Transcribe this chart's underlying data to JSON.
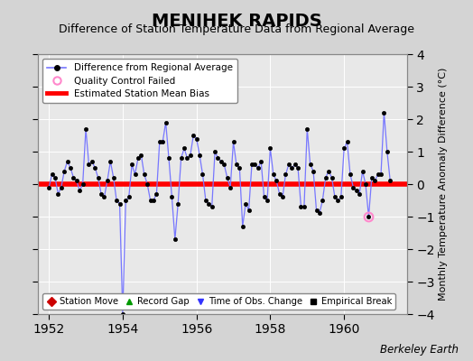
{
  "title": "MENIHEK RAPIDS",
  "subtitle": "Difference of Station Temperature Data from Regional Average",
  "ylabel": "Monthly Temperature Anomaly Difference (°C)",
  "credit": "Berkeley Earth",
  "xlim": [
    1951.7,
    1961.7
  ],
  "ylim": [
    -4,
    4
  ],
  "yticks": [
    -4,
    -3,
    -2,
    -1,
    0,
    1,
    2,
    3,
    4
  ],
  "xticks": [
    1952,
    1954,
    1956,
    1958,
    1960
  ],
  "bias_y": 0.0,
  "line_color": "#7777ff",
  "marker_color": "#000000",
  "bias_color": "#ff0000",
  "bg_color": "#e8e8e8",
  "fig_bg_color": "#d4d4d4",
  "data": [
    [
      1952.0,
      -0.1
    ],
    [
      1952.083,
      0.3
    ],
    [
      1952.167,
      0.2
    ],
    [
      1952.25,
      -0.3
    ],
    [
      1952.333,
      -0.1
    ],
    [
      1952.417,
      0.4
    ],
    [
      1952.5,
      0.7
    ],
    [
      1952.583,
      0.5
    ],
    [
      1952.667,
      0.2
    ],
    [
      1952.75,
      0.1
    ],
    [
      1952.833,
      -0.2
    ],
    [
      1952.917,
      0.0
    ],
    [
      1953.0,
      1.7
    ],
    [
      1953.083,
      0.6
    ],
    [
      1953.167,
      0.7
    ],
    [
      1953.25,
      0.5
    ],
    [
      1953.333,
      0.2
    ],
    [
      1953.417,
      -0.3
    ],
    [
      1953.5,
      -0.4
    ],
    [
      1953.583,
      0.1
    ],
    [
      1953.667,
      0.7
    ],
    [
      1953.75,
      0.2
    ],
    [
      1953.833,
      -0.5
    ],
    [
      1953.917,
      -0.6
    ],
    [
      1954.0,
      -4.0
    ],
    [
      1954.083,
      -0.5
    ],
    [
      1954.167,
      -0.4
    ],
    [
      1954.25,
      0.6
    ],
    [
      1954.333,
      0.3
    ],
    [
      1954.417,
      0.8
    ],
    [
      1954.5,
      0.9
    ],
    [
      1954.583,
      0.3
    ],
    [
      1954.667,
      0.0
    ],
    [
      1954.75,
      -0.5
    ],
    [
      1954.833,
      -0.5
    ],
    [
      1954.917,
      -0.3
    ],
    [
      1955.0,
      1.3
    ],
    [
      1955.083,
      1.3
    ],
    [
      1955.167,
      1.9
    ],
    [
      1955.25,
      0.8
    ],
    [
      1955.333,
      -0.4
    ],
    [
      1955.417,
      -1.7
    ],
    [
      1955.5,
      -0.6
    ],
    [
      1955.583,
      0.8
    ],
    [
      1955.667,
      1.1
    ],
    [
      1955.75,
      0.8
    ],
    [
      1955.833,
      0.9
    ],
    [
      1955.917,
      1.5
    ],
    [
      1956.0,
      1.4
    ],
    [
      1956.083,
      0.9
    ],
    [
      1956.167,
      0.3
    ],
    [
      1956.25,
      -0.5
    ],
    [
      1956.333,
      -0.6
    ],
    [
      1956.417,
      -0.7
    ],
    [
      1956.5,
      1.0
    ],
    [
      1956.583,
      0.8
    ],
    [
      1956.667,
      0.7
    ],
    [
      1956.75,
      0.6
    ],
    [
      1956.833,
      0.2
    ],
    [
      1956.917,
      -0.1
    ],
    [
      1957.0,
      1.3
    ],
    [
      1957.083,
      0.6
    ],
    [
      1957.167,
      0.5
    ],
    [
      1957.25,
      -1.3
    ],
    [
      1957.333,
      -0.6
    ],
    [
      1957.417,
      -0.8
    ],
    [
      1957.5,
      0.6
    ],
    [
      1957.583,
      0.6
    ],
    [
      1957.667,
      0.5
    ],
    [
      1957.75,
      0.7
    ],
    [
      1957.833,
      -0.4
    ],
    [
      1957.917,
      -0.5
    ],
    [
      1958.0,
      1.1
    ],
    [
      1958.083,
      0.3
    ],
    [
      1958.167,
      0.1
    ],
    [
      1958.25,
      -0.3
    ],
    [
      1958.333,
      -0.4
    ],
    [
      1958.417,
      0.3
    ],
    [
      1958.5,
      0.6
    ],
    [
      1958.583,
      0.5
    ],
    [
      1958.667,
      0.6
    ],
    [
      1958.75,
      0.5
    ],
    [
      1958.833,
      -0.7
    ],
    [
      1958.917,
      -0.7
    ],
    [
      1959.0,
      1.7
    ],
    [
      1959.083,
      0.6
    ],
    [
      1959.167,
      0.4
    ],
    [
      1959.25,
      -0.8
    ],
    [
      1959.333,
      -0.9
    ],
    [
      1959.417,
      -0.5
    ],
    [
      1959.5,
      0.2
    ],
    [
      1959.583,
      0.4
    ],
    [
      1959.667,
      0.2
    ],
    [
      1959.75,
      -0.4
    ],
    [
      1959.833,
      -0.5
    ],
    [
      1959.917,
      -0.4
    ],
    [
      1960.0,
      1.1
    ],
    [
      1960.083,
      1.3
    ],
    [
      1960.167,
      0.3
    ],
    [
      1960.25,
      -0.1
    ],
    [
      1960.333,
      -0.2
    ],
    [
      1960.417,
      -0.3
    ],
    [
      1960.5,
      0.4
    ],
    [
      1960.583,
      0.0
    ],
    [
      1960.667,
      -1.0
    ],
    [
      1960.75,
      0.2
    ],
    [
      1960.833,
      0.1
    ],
    [
      1960.917,
      0.3
    ],
    [
      1961.0,
      0.3
    ],
    [
      1961.083,
      2.2
    ],
    [
      1961.167,
      1.0
    ],
    [
      1961.25,
      0.1
    ]
  ],
  "qc_failed": [
    [
      1960.667,
      -1.0
    ]
  ],
  "title_fontsize": 14,
  "subtitle_fontsize": 9,
  "tick_fontsize": 10,
  "ylabel_fontsize": 8
}
